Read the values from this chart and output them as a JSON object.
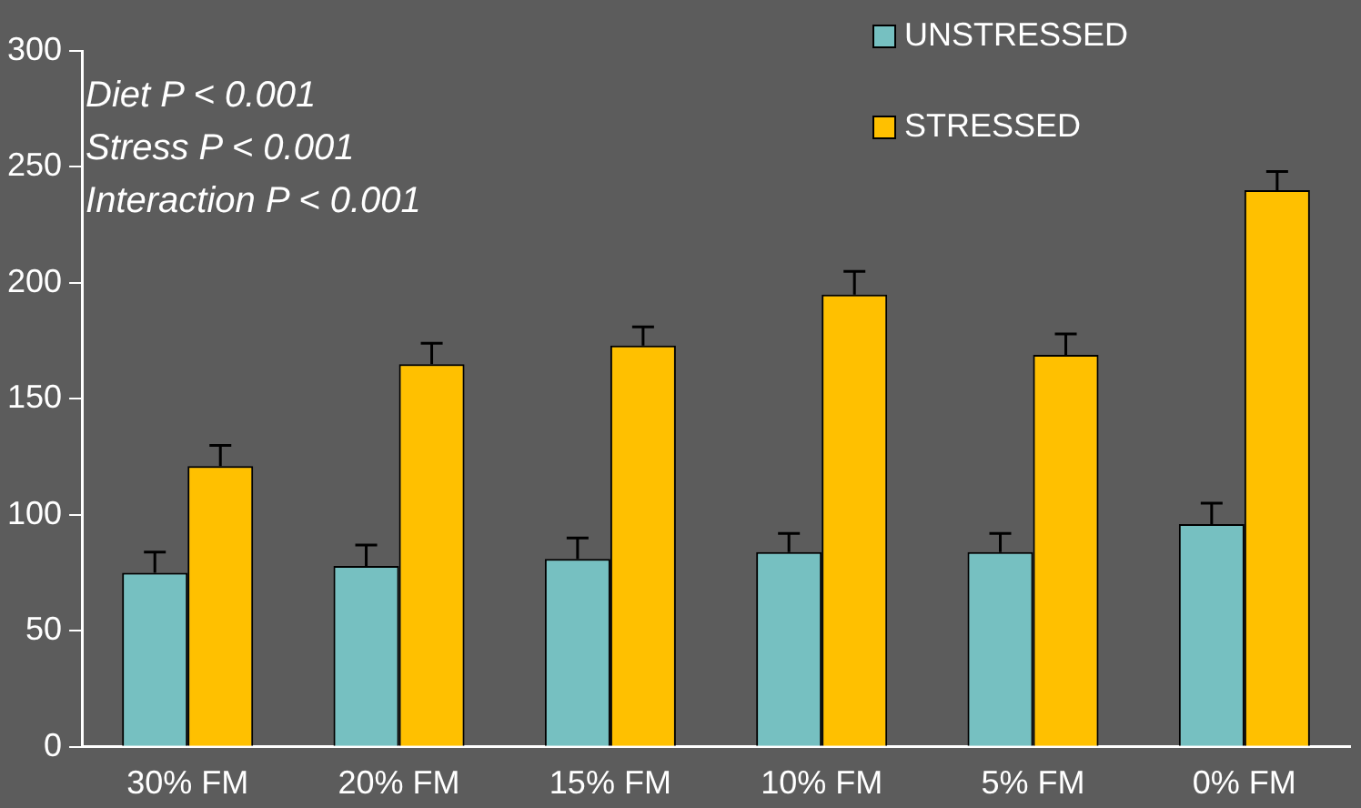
{
  "chart_data": {
    "type": "bar",
    "categories": [
      "30% FM",
      "20% FM",
      "15% FM",
      "10% FM",
      "5% FM",
      "0% FM"
    ],
    "series": [
      {
        "name": "UNSTRESSED",
        "color": "#76c0c1",
        "values": [
          75,
          78,
          81,
          84,
          84,
          96
        ],
        "errors": [
          [
            75,
            84
          ],
          [
            78,
            87
          ],
          [
            81,
            90
          ],
          [
            84,
            92
          ],
          [
            84,
            92
          ],
          [
            96,
            105
          ]
        ]
      },
      {
        "name": "STRESSED",
        "color": "#ffc000",
        "values": [
          121,
          165,
          173,
          195,
          169,
          240
        ],
        "errors": [
          [
            121,
            130
          ],
          [
            165,
            174
          ],
          [
            173,
            181
          ],
          [
            195,
            205
          ],
          [
            169,
            178
          ],
          [
            240,
            248
          ]
        ]
      }
    ],
    "ylim": [
      0,
      300
    ],
    "yticks": [
      0,
      50,
      100,
      150,
      200,
      250,
      300
    ],
    "grid": false,
    "legend": "top right",
    "annotations": [
      "Diet P < 0.001",
      "Stress P < 0.001",
      "Interaction P < 0.001"
    ]
  }
}
